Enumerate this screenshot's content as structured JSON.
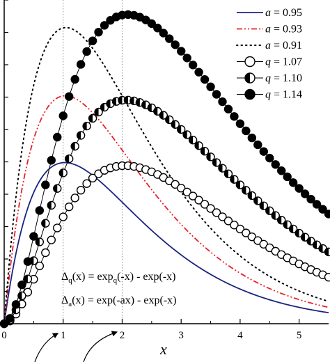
{
  "chart_data": {
    "type": "line",
    "title": "",
    "xlabel": "x",
    "ylabel": "",
    "xlim": [
      0,
      5.5
    ],
    "ylim": [
      0,
      0.5
    ],
    "xticks": [
      0,
      1,
      2,
      3,
      4,
      5
    ],
    "xtick_labels": [
      "0",
      "1",
      "2",
      "3",
      "4",
      "5"
    ],
    "grid": false,
    "legend_position": "top-right",
    "reference_lines_x": [
      1,
      2
    ],
    "annotations": {
      "delta_q": {
        "lhs": "Δ",
        "sub": "q",
        "rest": "(x) = exp",
        "sub2": "q",
        "tail": "(-x) - exp(-x)"
      },
      "delta_a": {
        "lhs": "Δ",
        "sub": "a",
        "rest": "(x) = exp(-ax) - exp(-x)"
      }
    },
    "series": [
      {
        "legend_var": "a",
        "legend_value": " = 0.95",
        "kind": "a",
        "param": 0.95,
        "style": "solid",
        "color": "#1a237e"
      },
      {
        "legend_var": "a",
        "legend_value": " = 0.93",
        "kind": "a",
        "param": 0.93,
        "style": "dashdot",
        "color": "#e8202a"
      },
      {
        "legend_var": "a",
        "legend_value": " = 0.91",
        "kind": "a",
        "param": 0.91,
        "style": "dotted",
        "color": "#000000"
      },
      {
        "legend_var": "q",
        "legend_value": " = 1.07",
        "kind": "q",
        "param": 1.07,
        "style": "marker-open",
        "color": "#000000"
      },
      {
        "legend_var": "q",
        "legend_value": " = 1.10",
        "kind": "q",
        "param": 1.1,
        "style": "marker-half",
        "color": "#000000"
      },
      {
        "legend_var": "q",
        "legend_value": " = 1.14",
        "kind": "q",
        "param": 1.14,
        "style": "marker-filled",
        "color": "#000000"
      }
    ]
  }
}
